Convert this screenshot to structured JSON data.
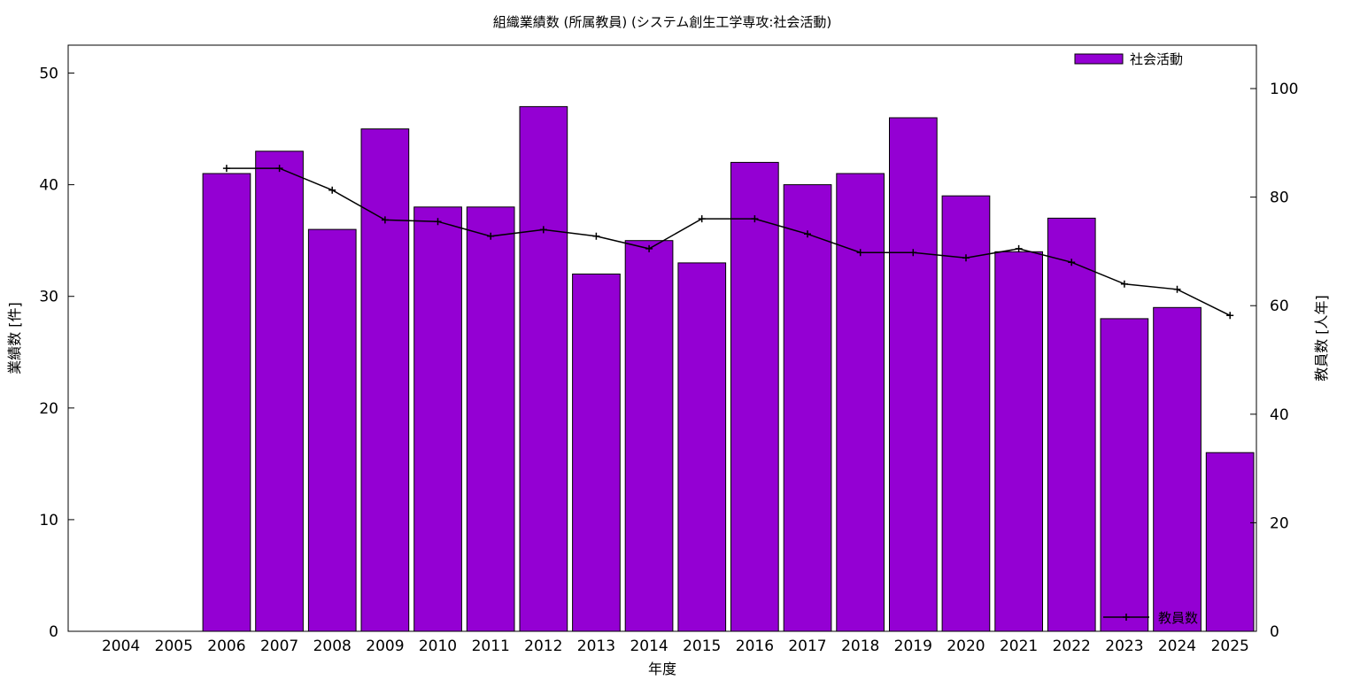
{
  "chart_data": {
    "type": "bar",
    "title": "組織業績数 (所属教員) (システム創生工学専攻:社会活動)",
    "xlabel": "年度",
    "ylabel": "業績数 [件]",
    "y2label": "教員数 [人年]",
    "categories": [
      "2004",
      "2005",
      "2006",
      "2007",
      "2008",
      "2009",
      "2010",
      "2011",
      "2012",
      "2013",
      "2014",
      "2015",
      "2016",
      "2017",
      "2018",
      "2019",
      "2020",
      "2021",
      "2022",
      "2023",
      "2024",
      "2025"
    ],
    "ylim": [
      0,
      52.5
    ],
    "y2lim": [
      0,
      108
    ],
    "yticks": [
      0,
      10,
      20,
      30,
      40,
      50
    ],
    "y2ticks": [
      0,
      20,
      40,
      60,
      80,
      100
    ],
    "grid": false,
    "series": [
      {
        "name": "社会活動",
        "type": "bar",
        "axis": "left",
        "color": "#9400d3",
        "values": [
          null,
          null,
          41,
          43,
          36,
          45,
          38,
          38,
          47,
          32,
          35,
          33,
          42,
          40,
          41,
          46,
          39,
          34,
          37,
          28,
          29,
          16
        ]
      },
      {
        "name": "教員数",
        "type": "line",
        "axis": "right",
        "color": "#000000",
        "values": [
          null,
          null,
          85.3,
          85.3,
          81.3,
          75.8,
          75.5,
          72.8,
          74.0,
          72.8,
          70.5,
          76.0,
          76.0,
          73.2,
          69.8,
          69.8,
          68.8,
          70.5,
          68.0,
          64.0,
          63.0,
          58.2
        ]
      }
    ],
    "legend": [
      {
        "label": "社会活動",
        "position": "top-right"
      },
      {
        "label": "教員数",
        "position": "bottom-right"
      }
    ]
  }
}
